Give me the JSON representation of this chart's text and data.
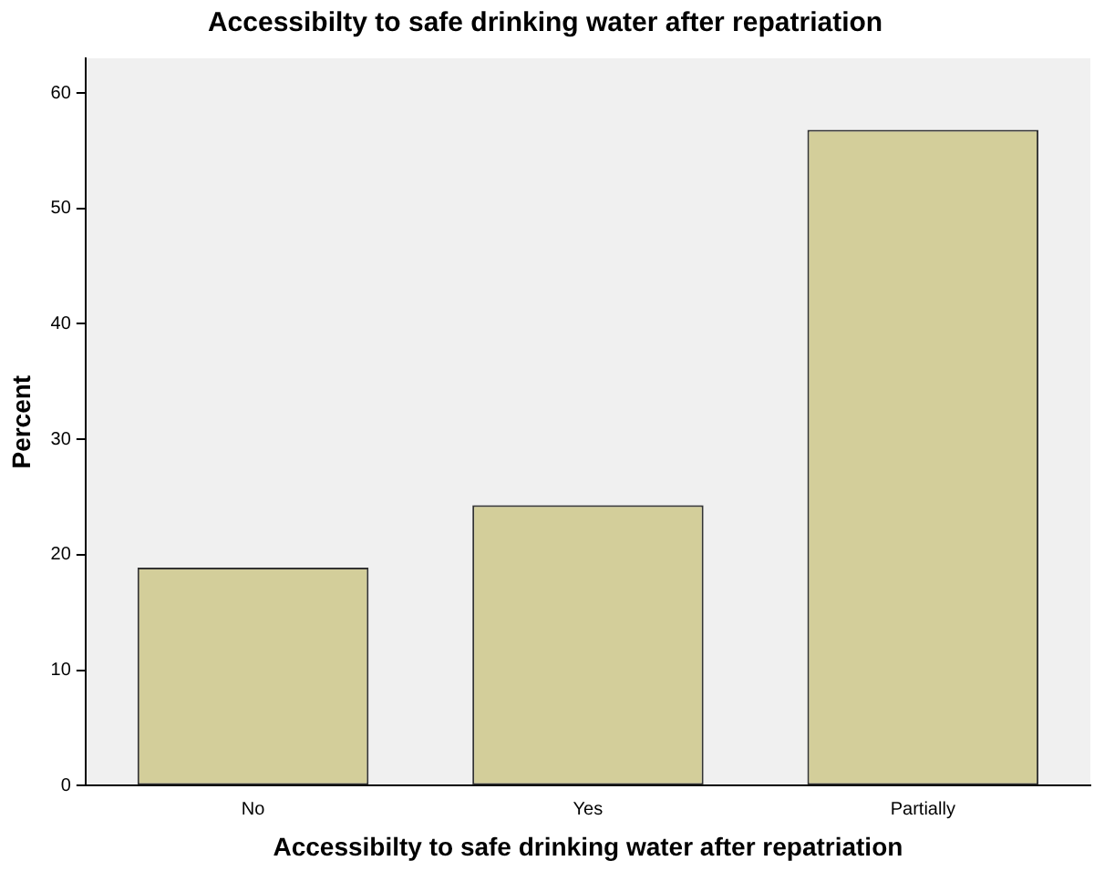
{
  "chart_data": {
    "type": "bar",
    "title": "Accessibilty to safe drinking water after repatriation",
    "xlabel": "Accessibilty to safe drinking water after repatriation",
    "ylabel": "Percent",
    "categories": [
      "No",
      "Yes",
      "Partially"
    ],
    "values": [
      18.9,
      24.3,
      56.8
    ],
    "color": "#d3ce9a",
    "ylim": [
      0,
      63
    ],
    "yticks": [
      0,
      10,
      20,
      30,
      40,
      50,
      60
    ],
    "grid": false,
    "legend": false
  }
}
